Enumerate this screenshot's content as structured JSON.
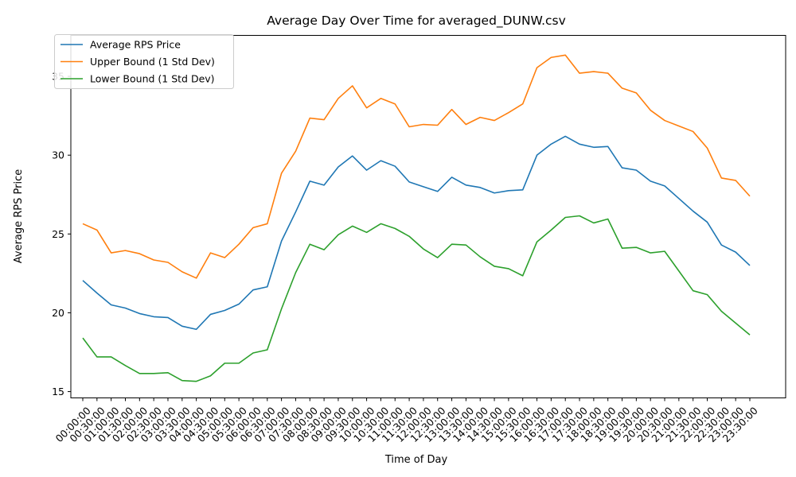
{
  "chart_data": {
    "type": "line",
    "title": "Average Day Over Time for averaged_DUNW.csv",
    "xlabel": "Time of Day",
    "ylabel": "Average RPS Price",
    "ylim": [
      14.6,
      37.6
    ],
    "yticks": [
      15,
      20,
      25,
      30,
      35
    ],
    "legend_position": "upper-left",
    "grid": false,
    "x": [
      "00:00:00",
      "00:30:00",
      "01:00:00",
      "01:30:00",
      "02:00:00",
      "02:30:00",
      "03:00:00",
      "03:30:00",
      "04:00:00",
      "04:30:00",
      "05:00:00",
      "05:30:00",
      "06:00:00",
      "06:30:00",
      "07:00:00",
      "07:30:00",
      "08:00:00",
      "08:30:00",
      "09:00:00",
      "09:30:00",
      "10:00:00",
      "10:30:00",
      "11:00:00",
      "11:30:00",
      "12:00:00",
      "12:30:00",
      "13:00:00",
      "13:30:00",
      "14:00:00",
      "14:30:00",
      "15:00:00",
      "15:30:00",
      "16:00:00",
      "16:30:00",
      "17:00:00",
      "17:30:00",
      "18:00:00",
      "18:30:00",
      "19:00:00",
      "19:30:00",
      "20:00:00",
      "20:30:00",
      "21:00:00",
      "21:30:00",
      "22:00:00",
      "22:30:00",
      "23:00:00",
      "23:30:00"
    ],
    "series": [
      {
        "name": "Average RPS Price",
        "color": "#1f77b4",
        "values": [
          22.05,
          21.25,
          20.5,
          20.3,
          19.95,
          19.75,
          19.7,
          19.15,
          18.95,
          19.9,
          20.15,
          20.55,
          21.45,
          21.65,
          24.55,
          26.4,
          28.35,
          28.1,
          29.25,
          29.95,
          29.05,
          29.65,
          29.3,
          28.3,
          28.0,
          27.7,
          28.6,
          28.1,
          27.95,
          27.6,
          27.75,
          27.8,
          30.0,
          30.7,
          31.2,
          30.7,
          30.5,
          30.55,
          29.2,
          29.05,
          28.35,
          28.05,
          27.25,
          26.45,
          25.75,
          24.3,
          23.85,
          23.0
        ]
      },
      {
        "name": "Upper Bound (1 Std Dev)",
        "color": "#ff7f0e",
        "values": [
          25.65,
          25.25,
          23.8,
          23.95,
          23.75,
          23.35,
          23.2,
          22.6,
          22.2,
          23.8,
          23.5,
          24.35,
          25.4,
          25.65,
          28.85,
          30.25,
          32.35,
          32.25,
          33.6,
          34.4,
          33.0,
          33.6,
          33.25,
          31.8,
          31.95,
          31.9,
          32.9,
          31.95,
          32.4,
          32.2,
          32.7,
          33.25,
          35.55,
          36.2,
          36.35,
          35.2,
          35.3,
          35.2,
          34.25,
          33.95,
          32.85,
          32.2,
          31.85,
          31.5,
          30.45,
          28.55,
          28.4,
          27.4
        ]
      },
      {
        "name": "Lower Bound (1 Std Dev)",
        "color": "#2ca02c",
        "values": [
          18.4,
          17.2,
          17.2,
          16.65,
          16.15,
          16.15,
          16.2,
          15.7,
          15.65,
          16.0,
          16.8,
          16.8,
          17.45,
          17.65,
          20.25,
          22.55,
          24.35,
          24.0,
          24.95,
          25.5,
          25.1,
          25.65,
          25.35,
          24.85,
          24.05,
          23.5,
          24.35,
          24.3,
          23.55,
          22.95,
          22.8,
          22.35,
          24.5,
          25.25,
          26.05,
          26.15,
          25.7,
          25.95,
          24.1,
          24.15,
          23.8,
          23.9,
          22.65,
          21.4,
          21.15,
          20.1,
          19.35,
          18.6
        ]
      }
    ]
  }
}
